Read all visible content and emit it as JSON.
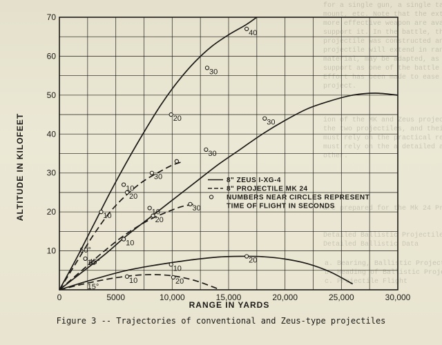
{
  "caption": "Figure 3 -- Trajectories of conventional and Zeus-type projectiles",
  "chart_data": {
    "type": "line",
    "xlabel": "RANGE IN YARDS",
    "ylabel": "ALTITUDE IN KILOFEET",
    "xlim": [
      0,
      30000
    ],
    "ylim": [
      0,
      70
    ],
    "x_ticks": [
      "0",
      "5000",
      "10,000",
      "15,000",
      "20,000",
      "25,000",
      "30,000"
    ],
    "y_ticks": [
      "0",
      "10",
      "20",
      "30",
      "40",
      "50",
      "60",
      "70"
    ],
    "grid": true,
    "legend": {
      "placement": "center-right",
      "entries": [
        {
          "style": "solid",
          "label": "8\" ZEUS I-XG-4"
        },
        {
          "style": "dashed",
          "label": "8\" PROJECTILE MK 24"
        },
        {
          "style": "circle",
          "label": "NUMBERS NEAR CIRCLES REPRESENT"
        },
        {
          "style": "none",
          "label": "TIME OF FLIGHT IN SECONDS"
        }
      ]
    },
    "angle_labels": [
      {
        "text": "60°",
        "x": 2300,
        "y": 9.6
      },
      {
        "text": "45°",
        "x": 3100,
        "y": 6.6
      },
      {
        "text": "15°",
        "x": 3000,
        "y": 0.2
      }
    ],
    "series": [
      {
        "name": "8\" ZEUS I-XG-4",
        "style": "solid",
        "x": [
          0,
          1500,
          3000,
          4500,
          6000,
          7500,
          9000,
          10500,
          12000,
          13500,
          15000,
          16500,
          17500
        ],
        "y": [
          0,
          8,
          16.5,
          25,
          33,
          40.5,
          47.5,
          53.5,
          58.5,
          62.5,
          65.5,
          68,
          70
        ],
        "markers": [
          {
            "x": 3700,
            "y": 20,
            "label": "10"
          },
          {
            "x": 9900,
            "y": 45,
            "label": "20"
          },
          {
            "x": 13100,
            "y": 57,
            "label": "30"
          },
          {
            "x": 16600,
            "y": 67,
            "label": "40"
          }
        ]
      },
      {
        "name": "8\" ZEUS I-XG-4",
        "style": "solid",
        "x": [
          0,
          2000,
          4000,
          6000,
          8000,
          10000,
          12000,
          14000,
          16000,
          18000,
          20000,
          22000,
          24000,
          26000,
          28000,
          30000
        ],
        "y": [
          0,
          4.5,
          9,
          14,
          18.5,
          23,
          27.5,
          32,
          36,
          40,
          43.5,
          46.5,
          48.5,
          50,
          50.5,
          50
        ],
        "markers": [
          {
            "x": 5700,
            "y": 13,
            "label": "10"
          },
          {
            "x": 8300,
            "y": 19,
            "label": "20"
          },
          {
            "x": 13000,
            "y": 36,
            "label": "30"
          },
          {
            "x": 18200,
            "y": 44,
            "label": "30"
          }
        ]
      },
      {
        "name": "8\" ZEUS I-XG-4",
        "style": "solid",
        "x": [
          0,
          2000,
          4000,
          6000,
          8000,
          10000,
          12000,
          14000,
          16000,
          18000,
          20000,
          22000,
          24000,
          26000
        ],
        "y": [
          0,
          1.8,
          3.5,
          5,
          6.1,
          7,
          7.8,
          8.4,
          8.6,
          8.5,
          7.9,
          6.7,
          4.6,
          1.5
        ],
        "markers": [
          {
            "x": 9900,
            "y": 6.5,
            "label": "10"
          },
          {
            "x": 16600,
            "y": 8.6,
            "label": "20"
          }
        ]
      },
      {
        "name": "8\" PROJECTILE MK 24",
        "style": "dashed",
        "x": [
          0,
          1500,
          3000,
          4500,
          6000,
          7500,
          9000,
          10000,
          11000
        ],
        "y": [
          0,
          7,
          14,
          20,
          24.5,
          28,
          30.5,
          32,
          33
        ],
        "markers": [
          {
            "x": 5700,
            "y": 27,
            "label": "10"
          },
          {
            "x": 8200,
            "y": 30,
            "label": "30"
          },
          {
            "x": 10400,
            "y": 33,
            "label": ""
          }
        ]
      },
      {
        "name": "8\" PROJECTILE MK 24",
        "style": "dashed",
        "x": [
          0,
          2000,
          4000,
          6000,
          8000,
          10000,
          11000,
          12000
        ],
        "y": [
          0,
          5,
          10,
          14.5,
          18,
          20.5,
          21.5,
          22
        ],
        "markers": [
          {
            "x": 2300,
            "y": 8,
            "label": "10"
          },
          {
            "x": 8000,
            "y": 21,
            "label": "10"
          },
          {
            "x": 11600,
            "y": 22,
            "label": "30"
          },
          {
            "x": 6000,
            "y": 25,
            "label": "20"
          }
        ]
      },
      {
        "name": "8\" PROJECTILE MK 24",
        "style": "dashed",
        "x": [
          0,
          2000,
          4000,
          6000,
          8000,
          10000,
          12000,
          14000
        ],
        "y": [
          0,
          1.4,
          2.6,
          3.5,
          3.9,
          3.6,
          2.4,
          0.3
        ],
        "markers": [
          {
            "x": 6000,
            "y": 3.4,
            "label": "10"
          },
          {
            "x": 10100,
            "y": 3.2,
            "label": "20"
          }
        ]
      }
    ]
  },
  "bleed_text": {
    "block_a": "for a single gun, a single target, a single\nmount, etc. Note that the extra range of the\nmore effective weapon are available to\nsupport it. In the battle, the Zeus\nprojectile was constructed and there\nprojectile will extend in range of our\nmaterial, may be adapted, as other uses\nsupport as one of the battle the Zeus\nEffort has been made to ease the effort\nproject.",
    "block_b": "ion of the MK and Zeus projectiles and\nthe two projectiles, and their ranges so\nmust rely on the practical results obtained\nmust rely on the a detailed and accurate\nother.",
    "block_c": "\nare prepared for the Mk 24 Projectile:\n\n\nDetailed Ballistic Projectiles\nDetailed Ballistic Data",
    "block_d": "a. Bearing, Ballistic Projectiles\nb. Heading of Ballistic Projectiles\nc. Projectile Flight"
  }
}
